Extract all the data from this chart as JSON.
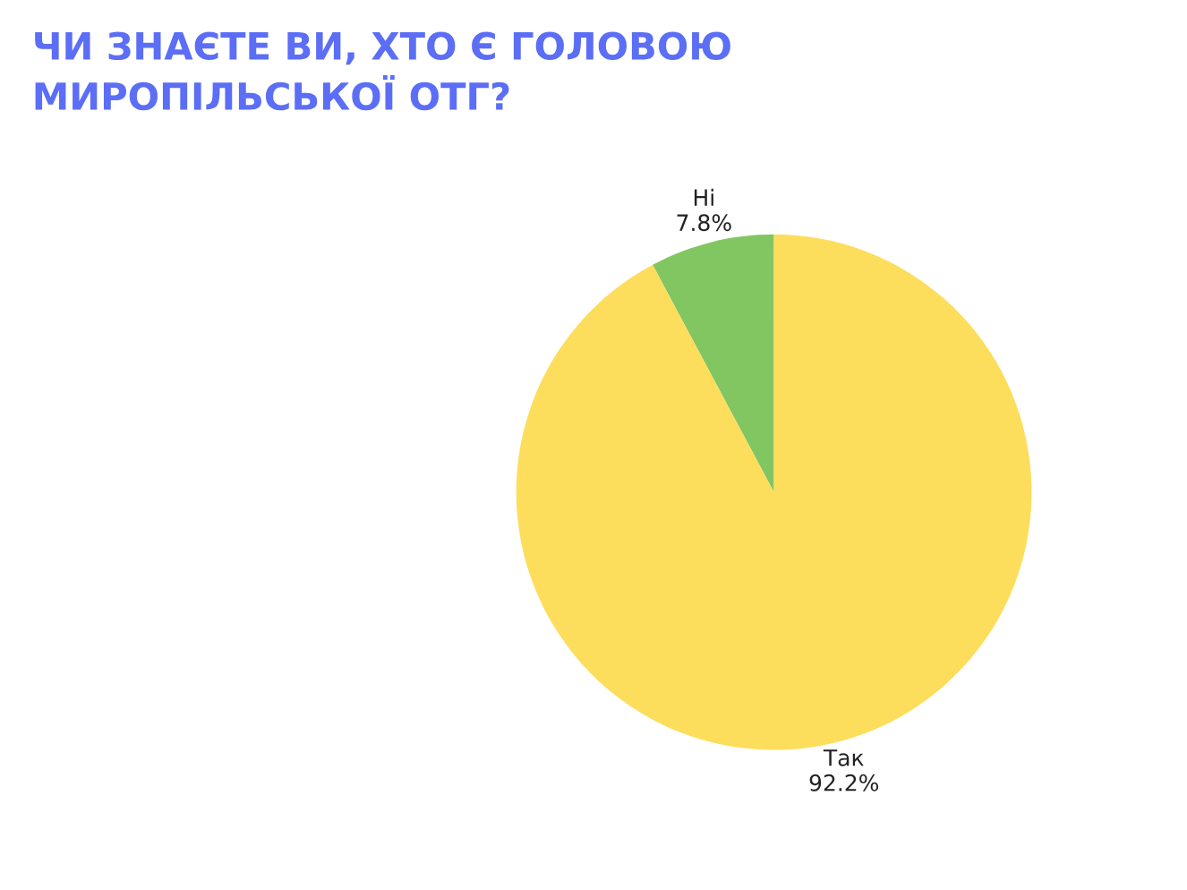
{
  "chart_data": {
    "type": "pie",
    "title": "ЧИ ЗНАЄТЕ ВИ, ХТО Є ГОЛОВОЮ\nМИРОПІЛЬСЬКОЇ ОТГ?",
    "categories": [
      "Ні",
      "Так"
    ],
    "values": [
      7.8,
      92.2
    ],
    "value_labels": [
      "7.8%",
      "92.2%"
    ],
    "colors": [
      "#82c662",
      "#fddd5c"
    ]
  }
}
